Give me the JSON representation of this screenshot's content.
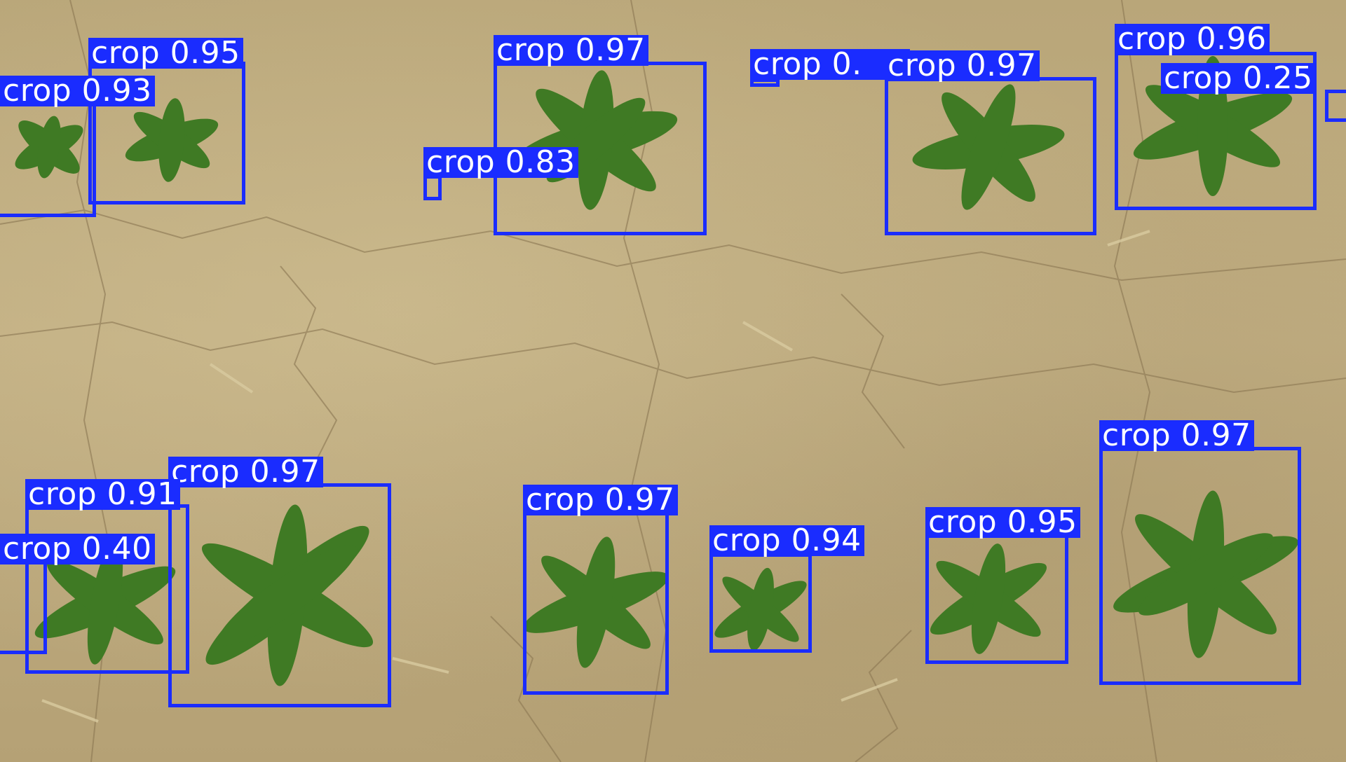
{
  "image": {
    "description_class": "crop detections on soil",
    "box_color": "#1a2cff",
    "label_text_color": "#ffffff"
  },
  "detections": [
    {
      "label": "crop 0.95"
    },
    {
      "label": "crop 0.93"
    },
    {
      "label": "crop 0.97"
    },
    {
      "label": "crop 0.83"
    },
    {
      "label": "crop 0.",
      "note_truncated": true
    },
    {
      "label": "crop 0.97"
    },
    {
      "label": "crop 0.96"
    },
    {
      "label": "crop 0.25"
    },
    {
      "label": "crop 0.97"
    },
    {
      "label": "crop 0.91"
    },
    {
      "label": "crop 0.40"
    },
    {
      "label": "crop 0.97"
    },
    {
      "label": "crop 0.94"
    },
    {
      "label": "crop 0.95"
    },
    {
      "label": "crop 0.97"
    }
  ]
}
